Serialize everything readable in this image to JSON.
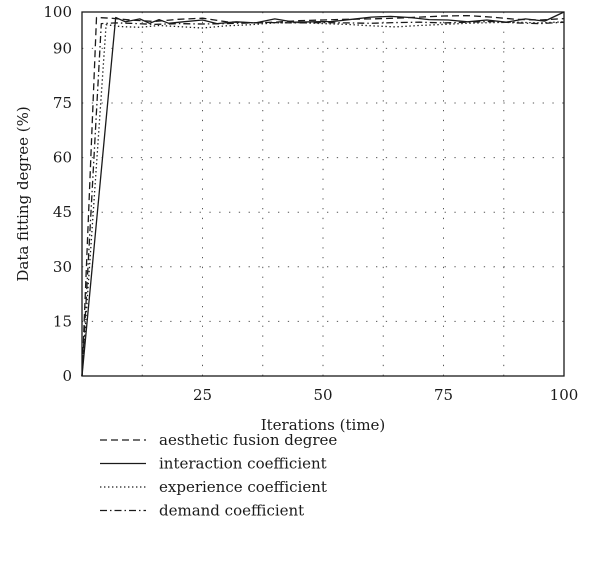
{
  "chart_data": {
    "type": "line",
    "xlabel": "Iterations (time)",
    "ylabel": "Data fitting degree (%)",
    "xlim": [
      0,
      100
    ],
    "ylim": [
      0,
      100
    ],
    "x_ticks": [
      {
        "value": 25,
        "label": "25"
      },
      {
        "value": 50,
        "label": "50"
      },
      {
        "value": 75,
        "label": "75"
      },
      {
        "value": 100,
        "label": "100"
      }
    ],
    "y_ticks": [
      {
        "value": 0,
        "label": "0"
      },
      {
        "value": 15,
        "label": "15"
      },
      {
        "value": 30,
        "label": "30"
      },
      {
        "value": 45,
        "label": "45"
      },
      {
        "value": 60,
        "label": "60"
      },
      {
        "value": 75,
        "label": "75"
      },
      {
        "value": 90,
        "label": "90"
      },
      {
        "value": 100,
        "label": "100"
      }
    ],
    "grid": true,
    "legend_position": "below",
    "series": [
      {
        "name": "aesthetic fusion degree",
        "style": "dashed",
        "x": [
          0,
          3,
          6,
          10,
          15,
          20,
          25,
          30,
          35,
          40,
          45,
          50,
          55,
          60,
          65,
          70,
          75,
          80,
          85,
          90,
          95,
          100
        ],
        "y": [
          0,
          98.5,
          98.3,
          97.8,
          97.4,
          98.0,
          98.3,
          97.3,
          97.0,
          97.2,
          97.6,
          97.8,
          98.0,
          98.1,
          98.3,
          98.6,
          98.9,
          99.0,
          98.6,
          98.0,
          97.8,
          98.2
        ]
      },
      {
        "name": "interaction coefficient",
        "style": "solid",
        "x": [
          0,
          7,
          9,
          12,
          14,
          16,
          18,
          21,
          25,
          28,
          32,
          36,
          40,
          44,
          48,
          52,
          56,
          60,
          64,
          68,
          72,
          76,
          80,
          84,
          88,
          92,
          96,
          100
        ],
        "y": [
          0,
          98.5,
          97.3,
          98.1,
          96.9,
          97.9,
          96.9,
          97.3,
          97.8,
          96.8,
          97.3,
          97.0,
          98.1,
          97.2,
          97.3,
          97.4,
          98.0,
          98.6,
          98.8,
          98.5,
          97.9,
          97.8,
          97.3,
          97.8,
          97.2,
          98.1,
          97.5,
          100
        ]
      },
      {
        "name": "experience coefficient",
        "style": "dotted",
        "x": [
          0,
          5,
          8,
          12,
          16,
          20,
          25,
          30,
          35,
          40,
          45,
          50,
          55,
          60,
          65,
          70,
          75,
          80,
          85,
          90,
          95,
          100
        ],
        "y": [
          0,
          96.5,
          96.0,
          95.8,
          96.3,
          96.0,
          95.6,
          96.2,
          96.5,
          97.0,
          97.1,
          96.8,
          96.6,
          96.2,
          95.9,
          96.3,
          96.6,
          96.9,
          97.1,
          97.2,
          97.0,
          97.3
        ]
      },
      {
        "name": "demand coefficient",
        "style": "dash-dot",
        "x": [
          0,
          4,
          7,
          10,
          15,
          20,
          25,
          30,
          35,
          40,
          45,
          50,
          55,
          60,
          65,
          70,
          75,
          80,
          85,
          90,
          95,
          100
        ],
        "y": [
          0,
          96.8,
          97.0,
          96.9,
          96.6,
          96.8,
          96.7,
          96.8,
          97.0,
          97.1,
          97.0,
          97.1,
          97.0,
          96.9,
          97.1,
          97.2,
          97.0,
          97.2,
          97.4,
          97.0,
          96.8,
          97.2
        ]
      }
    ]
  }
}
